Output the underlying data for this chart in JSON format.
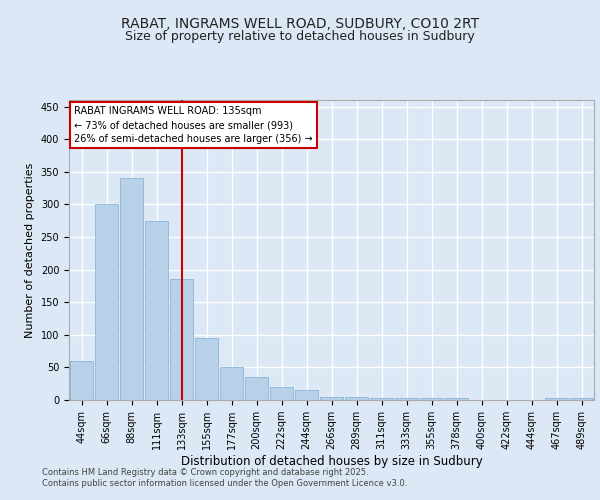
{
  "title_line1": "RABAT, INGRAMS WELL ROAD, SUDBURY, CO10 2RT",
  "title_line2": "Size of property relative to detached houses in Sudbury",
  "xlabel": "Distribution of detached houses by size in Sudbury",
  "ylabel": "Number of detached properties",
  "bar_color": "#b8d0e8",
  "bar_edge_color": "#7aafd4",
  "bin_labels": [
    "44sqm",
    "66sqm",
    "88sqm",
    "111sqm",
    "133sqm",
    "155sqm",
    "177sqm",
    "200sqm",
    "222sqm",
    "244sqm",
    "266sqm",
    "289sqm",
    "311sqm",
    "333sqm",
    "355sqm",
    "378sqm",
    "400sqm",
    "422sqm",
    "444sqm",
    "467sqm",
    "489sqm"
  ],
  "bar_heights": [
    60,
    300,
    340,
    275,
    185,
    95,
    50,
    35,
    20,
    15,
    5,
    5,
    3,
    3,
    3,
    3,
    0,
    0,
    0,
    3,
    3
  ],
  "property_bin_index": 4,
  "vline_color": "#cc0000",
  "annotation_text": "RABAT INGRAMS WELL ROAD: 135sqm\n← 73% of detached houses are smaller (993)\n26% of semi-detached houses are larger (356) →",
  "annotation_box_color": "#ffffff",
  "annotation_box_edge": "#cc0000",
  "ylim": [
    0,
    460
  ],
  "yticks": [
    0,
    50,
    100,
    150,
    200,
    250,
    300,
    350,
    400,
    450
  ],
  "background_color": "#dce8f5",
  "plot_bg_color": "#dce8f5",
  "footer_line1": "Contains HM Land Registry data © Crown copyright and database right 2025.",
  "footer_line2": "Contains public sector information licensed under the Open Government Licence v3.0.",
  "grid_color": "#ffffff",
  "title_fontsize": 10,
  "subtitle_fontsize": 9,
  "tick_fontsize": 7,
  "xlabel_fontsize": 8.5,
  "ylabel_fontsize": 8,
  "footer_fontsize": 6,
  "annotation_fontsize": 7
}
